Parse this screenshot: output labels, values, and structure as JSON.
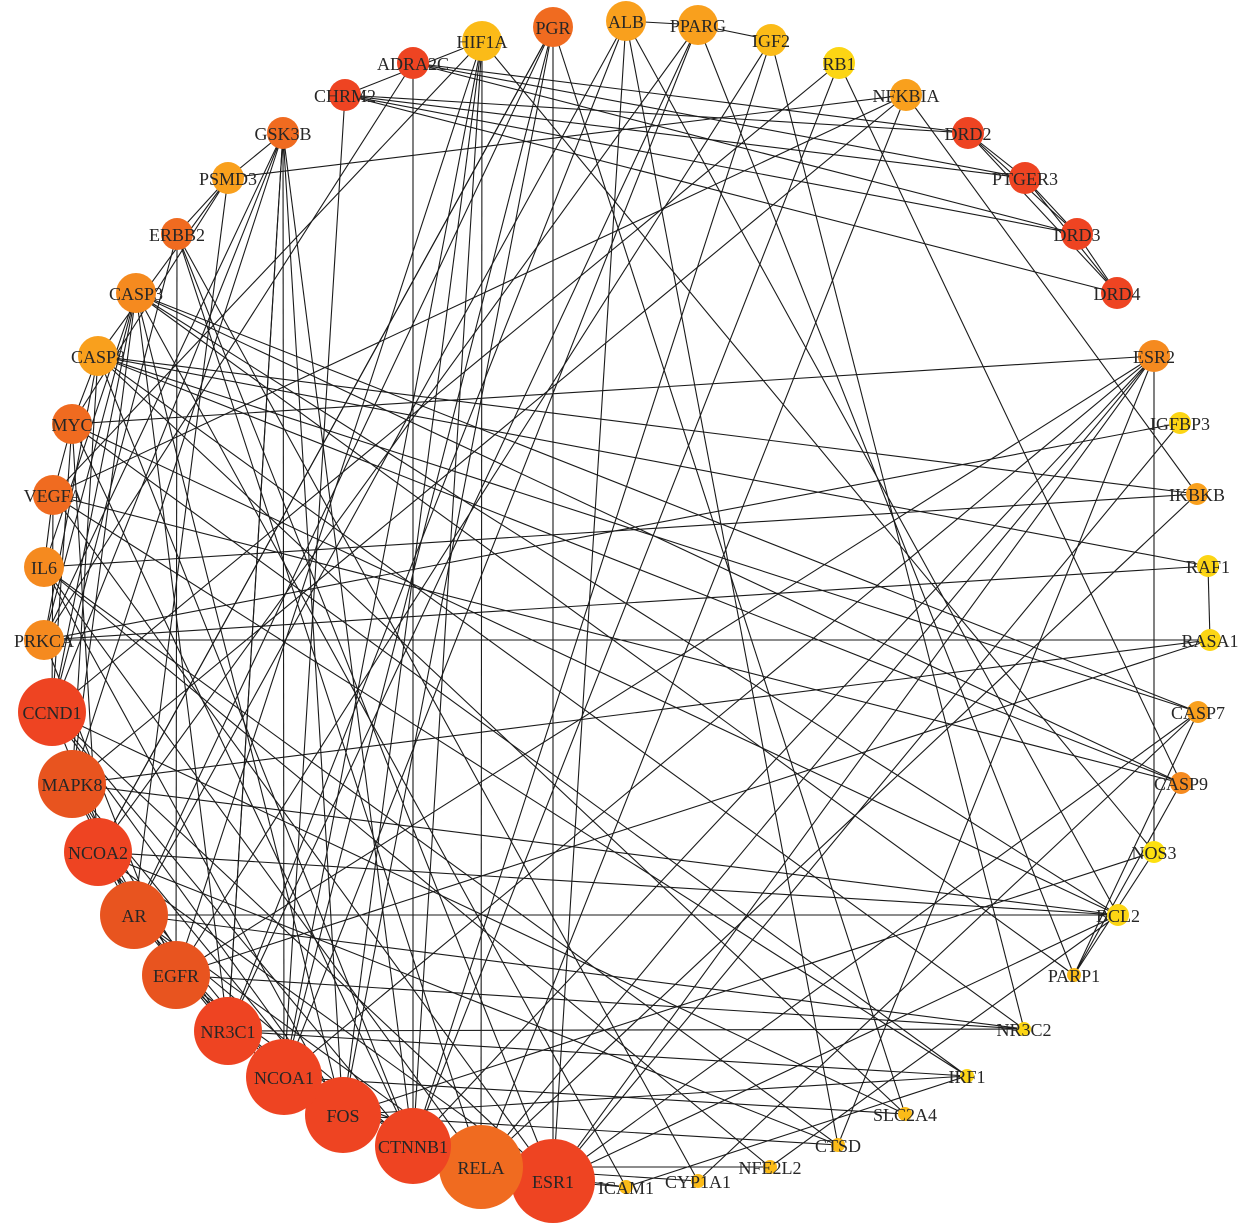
{
  "colors": {
    "c1": "#ee4422",
    "c2": "#e8541f",
    "c3": "#f06b20",
    "c4": "#f58a1f",
    "c5": "#f9a01d",
    "c6": "#fbbb18",
    "c7": "#fcd514",
    "c8": "#fde010",
    "edge": "#1a1a1a"
  },
  "network": {
    "nodes": [
      {
        "id": "HIF1A",
        "label": "HIF1A",
        "color": "c6",
        "size": "medium"
      },
      {
        "id": "PGR",
        "label": "PGR",
        "color": "c3",
        "size": "medium"
      },
      {
        "id": "ALB",
        "label": "ALB",
        "color": "c5",
        "size": "medium"
      },
      {
        "id": "PPARG",
        "label": "PPARG",
        "color": "c5",
        "size": "medium"
      },
      {
        "id": "IGF2",
        "label": "IGF2",
        "color": "c6",
        "size": "small"
      },
      {
        "id": "RB1",
        "label": "RB1",
        "color": "c7",
        "size": "small"
      },
      {
        "id": "NFKBIA",
        "label": "NFKBIA",
        "color": "c5",
        "size": "small"
      },
      {
        "id": "DRD2",
        "label": "DRD2",
        "color": "c1",
        "size": "small"
      },
      {
        "id": "PTGER3",
        "label": "PTGER3",
        "color": "c1",
        "size": "small"
      },
      {
        "id": "DRD3",
        "label": "DRD3",
        "color": "c1",
        "size": "small"
      },
      {
        "id": "DRD4",
        "label": "DRD4",
        "color": "c1",
        "size": "small"
      },
      {
        "id": "ESR2",
        "label": "ESR2",
        "color": "c4",
        "size": "small"
      },
      {
        "id": "IGFBP3",
        "label": "IGFBP3",
        "color": "c7",
        "size": "xsmall"
      },
      {
        "id": "IKBKB",
        "label": "IKBKB",
        "color": "c5",
        "size": "xsmall"
      },
      {
        "id": "RAF1",
        "label": "RAF1",
        "color": "c7",
        "size": "xsmall"
      },
      {
        "id": "RASA1",
        "label": "RASA1",
        "color": "c7",
        "size": "xsmall"
      },
      {
        "id": "CASP7",
        "label": "CASP7",
        "color": "c5",
        "size": "xsmall"
      },
      {
        "id": "CASP9",
        "label": "CASP9",
        "color": "c4",
        "size": "xsmall"
      },
      {
        "id": "NOS3",
        "label": "NOS3",
        "color": "c8",
        "size": "xsmall"
      },
      {
        "id": "BCL2",
        "label": "BCL2",
        "color": "c7",
        "size": "xsmall"
      },
      {
        "id": "PARP1",
        "label": "PARP1",
        "color": "c6",
        "size": "tiny"
      },
      {
        "id": "NR3C2",
        "label": "NR3C2",
        "color": "c7",
        "size": "tiny"
      },
      {
        "id": "IRF1",
        "label": "IRF1",
        "color": "c7",
        "size": "tiny"
      },
      {
        "id": "SLC2A4",
        "label": "SLC2A4",
        "color": "c6",
        "size": "tiny"
      },
      {
        "id": "CTSD",
        "label": "CTSD",
        "color": "c6",
        "size": "tiny"
      },
      {
        "id": "NFE2L2",
        "label": "NFE2L2",
        "color": "c6",
        "size": "tiny"
      },
      {
        "id": "CYP1A1",
        "label": "CYP1A1",
        "color": "c6",
        "size": "tiny"
      },
      {
        "id": "ICAM1",
        "label": "ICAM1",
        "color": "c6",
        "size": "tiny"
      },
      {
        "id": "ESR1",
        "label": "ESR1",
        "color": "c1",
        "size": "huge"
      },
      {
        "id": "RELA",
        "label": "RELA",
        "color": "c3",
        "size": "huge"
      },
      {
        "id": "CTNNB1",
        "label": "CTNNB1",
        "color": "c1",
        "size": "xlarge"
      },
      {
        "id": "FOS",
        "label": "FOS",
        "color": "c1",
        "size": "xlarge"
      },
      {
        "id": "NCOA1",
        "label": "NCOA1",
        "color": "c1",
        "size": "xlarge"
      },
      {
        "id": "NR3C1",
        "label": "NR3C1",
        "color": "c1",
        "size": "large"
      },
      {
        "id": "EGFR",
        "label": "EGFR",
        "color": "c2",
        "size": "large"
      },
      {
        "id": "AR",
        "label": "AR",
        "color": "c2",
        "size": "large"
      },
      {
        "id": "NCOA2",
        "label": "NCOA2",
        "color": "c1",
        "size": "large"
      },
      {
        "id": "MAPK8",
        "label": "MAPK8",
        "color": "c2",
        "size": "large"
      },
      {
        "id": "CCND1",
        "label": "CCND1",
        "color": "c1",
        "size": "large"
      },
      {
        "id": "PRKCA",
        "label": "PRKCA",
        "color": "c4",
        "size": "medium"
      },
      {
        "id": "IL6",
        "label": "IL6",
        "color": "c4",
        "size": "medium"
      },
      {
        "id": "VEGFA",
        "label": "VEGFA",
        "color": "c3",
        "size": "medium"
      },
      {
        "id": "MYC",
        "label": "MYC",
        "color": "c3",
        "size": "medium"
      },
      {
        "id": "CASP8",
        "label": "CASP8",
        "color": "c5",
        "size": "medium"
      },
      {
        "id": "CASP3",
        "label": "CASP3",
        "color": "c4",
        "size": "medium"
      },
      {
        "id": "ERBB2",
        "label": "ERBB2",
        "color": "c3",
        "size": "small"
      },
      {
        "id": "PSMD3",
        "label": "PSMD3",
        "color": "c5",
        "size": "small"
      },
      {
        "id": "GSK3B",
        "label": "GSK3B",
        "color": "c3",
        "size": "small"
      },
      {
        "id": "CHRM2",
        "label": "CHRM2",
        "color": "c1",
        "size": "small"
      },
      {
        "id": "ADRA2C",
        "label": "ADRA2C",
        "color": "c1",
        "size": "small"
      }
    ],
    "edges": [
      [
        "PPARG",
        "IGF2"
      ],
      [
        "ALB",
        "PPARG"
      ],
      [
        "DRD2",
        "PTGER3"
      ],
      [
        "DRD2",
        "DRD3"
      ],
      [
        "DRD2",
        "DRD4"
      ],
      [
        "PTGER3",
        "DRD3"
      ],
      [
        "PTGER3",
        "DRD4"
      ],
      [
        "DRD3",
        "DRD4"
      ],
      [
        "ADRA2C",
        "DRD2"
      ],
      [
        "ADRA2C",
        "DRD3"
      ],
      [
        "ADRA2C",
        "PTGER3"
      ],
      [
        "CHRM2",
        "DRD2"
      ],
      [
        "CHRM2",
        "DRD4"
      ],
      [
        "CHRM2",
        "PTGER3"
      ],
      [
        "CHRM2",
        "DRD3"
      ],
      [
        "ESR2",
        "NOS3"
      ],
      [
        "RAF1",
        "RASA1"
      ],
      [
        "PRKCA",
        "RASA1"
      ],
      [
        "PRKCA",
        "RAF1"
      ],
      [
        "CASP7",
        "PARP1"
      ],
      [
        "CASP9",
        "PARP1"
      ],
      [
        "CASP3",
        "CASP7"
      ],
      [
        "CASP3",
        "CASP9"
      ],
      [
        "CASP8",
        "CASP7"
      ],
      [
        "CASP8",
        "CASP9"
      ],
      [
        "CASP3",
        "PARP1"
      ],
      [
        "CASP8",
        "IKBKB"
      ],
      [
        "ESR1",
        "ESR2"
      ],
      [
        "ESR1",
        "PGR"
      ],
      [
        "ESR1",
        "NCOA1"
      ],
      [
        "ESR1",
        "NCOA2"
      ],
      [
        "ESR1",
        "CCND1"
      ],
      [
        "ESR1",
        "IGFBP3"
      ],
      [
        "ESR1",
        "ALB"
      ],
      [
        "ESR1",
        "BCL2"
      ],
      [
        "ESR1",
        "CASP7"
      ],
      [
        "ESR1",
        "ICAM1"
      ],
      [
        "RELA",
        "NFKBIA"
      ],
      [
        "RELA",
        "IKBKB"
      ],
      [
        "RELA",
        "NCOA1"
      ],
      [
        "RELA",
        "ICAM1"
      ],
      [
        "RELA",
        "HIF1A"
      ],
      [
        "RELA",
        "IL6"
      ],
      [
        "RELA",
        "NFE2L2"
      ],
      [
        "RELA",
        "ESR2"
      ],
      [
        "RELA",
        "AR"
      ],
      [
        "RELA",
        "CYP1A1"
      ],
      [
        "CTNNB1",
        "MYC"
      ],
      [
        "CTNNB1",
        "GSK3B"
      ],
      [
        "CTNNB1",
        "EGFR"
      ],
      [
        "CTNNB1",
        "CCND1"
      ],
      [
        "CTNNB1",
        "AR"
      ],
      [
        "CTNNB1",
        "ESR2"
      ],
      [
        "CTNNB1",
        "IGF2"
      ],
      [
        "CTNNB1",
        "HIF1A"
      ],
      [
        "CTNNB1",
        "RB1"
      ],
      [
        "FOS",
        "MAPK8"
      ],
      [
        "FOS",
        "CCND1"
      ],
      [
        "FOS",
        "EGFR"
      ],
      [
        "FOS",
        "IL6"
      ],
      [
        "FOS",
        "IRF1"
      ],
      [
        "FOS",
        "PGR"
      ],
      [
        "FOS",
        "HIF1A"
      ],
      [
        "FOS",
        "CTSD"
      ],
      [
        "FOS",
        "NOS3"
      ],
      [
        "NCOA1",
        "NCOA2"
      ],
      [
        "NCOA1",
        "AR"
      ],
      [
        "NCOA1",
        "PGR"
      ],
      [
        "NCOA1",
        "NR3C1"
      ],
      [
        "NCOA1",
        "PPARG"
      ],
      [
        "NCOA1",
        "SLC2A4"
      ],
      [
        "NCOA1",
        "ESR2"
      ],
      [
        "NCOA1",
        "HIF1A"
      ],
      [
        "NR3C1",
        "NCOA2"
      ],
      [
        "NR3C1",
        "AR"
      ],
      [
        "NR3C1",
        "NR3C2"
      ],
      [
        "NR3C1",
        "PPARG"
      ],
      [
        "NR3C1",
        "MAPK8"
      ],
      [
        "NR3C1",
        "IRF1"
      ],
      [
        "NR3C1",
        "ALB"
      ],
      [
        "NR3C1",
        "GSK3B"
      ],
      [
        "EGFR",
        "ERBB2"
      ],
      [
        "EGFR",
        "RASA1"
      ],
      [
        "EGFR",
        "PRKCA"
      ],
      [
        "EGFR",
        "MAPK8"
      ],
      [
        "EGFR",
        "HIF1A"
      ],
      [
        "EGFR",
        "IGF2"
      ],
      [
        "EGFR",
        "ESR2"
      ],
      [
        "EGFR",
        "NR3C2"
      ],
      [
        "AR",
        "NCOA2"
      ],
      [
        "AR",
        "PGR"
      ],
      [
        "AR",
        "CCND1"
      ],
      [
        "AR",
        "MAPK8"
      ],
      [
        "AR",
        "PSMD3"
      ],
      [
        "AR",
        "NR3C2"
      ],
      [
        "AR",
        "ALB"
      ],
      [
        "AR",
        "BCL2"
      ],
      [
        "NCOA2",
        "PGR"
      ],
      [
        "NCOA2",
        "PPARG"
      ],
      [
        "NCOA2",
        "BCL2"
      ],
      [
        "NCOA2",
        "CTSD"
      ],
      [
        "NCOA2",
        "MYC"
      ],
      [
        "MAPK8",
        "CASP3"
      ],
      [
        "MAPK8",
        "CASP8"
      ],
      [
        "MAPK8",
        "BCL2"
      ],
      [
        "MAPK8",
        "RASA1"
      ],
      [
        "MAPK8",
        "NFKBIA"
      ],
      [
        "MAPK8",
        "GSK3B"
      ],
      [
        "CCND1",
        "MYC"
      ],
      [
        "CCND1",
        "ERBB2"
      ],
      [
        "CCND1",
        "RB1"
      ],
      [
        "CCND1",
        "VEGFA"
      ],
      [
        "CCND1",
        "CASP3"
      ],
      [
        "CCND1",
        "GSK3B"
      ],
      [
        "CCND1",
        "SLC2A4"
      ],
      [
        "PRKCA",
        "CASP3"
      ],
      [
        "PRKCA",
        "IGFBP3"
      ],
      [
        "PRKCA",
        "GSK3B"
      ],
      [
        "PRKCA",
        "ADRA2C"
      ],
      [
        "PRKCA",
        "CASP8"
      ],
      [
        "IL6",
        "VEGFA"
      ],
      [
        "IL6",
        "IKBKB"
      ],
      [
        "IL6",
        "CASP3"
      ],
      [
        "IL6",
        "CTSD"
      ],
      [
        "IL6",
        "NFE2L2"
      ],
      [
        "VEGFA",
        "HIF1A"
      ],
      [
        "VEGFA",
        "CASP9"
      ],
      [
        "VEGFA",
        "ESR1"
      ],
      [
        "VEGFA",
        "MYC"
      ],
      [
        "VEGFA",
        "NFKBIA"
      ],
      [
        "MYC",
        "CASP8"
      ],
      [
        "MYC",
        "PSMD3"
      ],
      [
        "MYC",
        "ESR2"
      ],
      [
        "MYC",
        "IRF1"
      ],
      [
        "MYC",
        "BCL2"
      ],
      [
        "CASP8",
        "PSMD3"
      ],
      [
        "CASP8",
        "RAF1"
      ],
      [
        "CASP8",
        "SLC2A4"
      ],
      [
        "CASP8",
        "CTNNB1"
      ],
      [
        "CASP3",
        "BCL2"
      ],
      [
        "CASP3",
        "ICAM1"
      ],
      [
        "CASP3",
        "FOS"
      ],
      [
        "CASP3",
        "NR3C1"
      ],
      [
        "ERBB2",
        "PSMD3"
      ],
      [
        "ERBB2",
        "ESR1"
      ],
      [
        "ERBB2",
        "CYP1A1"
      ],
      [
        "ERBB2",
        "RELA"
      ],
      [
        "GSK3B",
        "PSMD3"
      ],
      [
        "GSK3B",
        "NCOA1"
      ],
      [
        "GSK3B",
        "NR3C1"
      ],
      [
        "GSK3B",
        "FOS"
      ],
      [
        "CHRM2",
        "HIF1A"
      ],
      [
        "CHRM2",
        "NCOA1"
      ],
      [
        "ADRA2C",
        "CTNNB1"
      ],
      [
        "PSMD3",
        "NFKBIA"
      ],
      [
        "HIF1A",
        "NOS3"
      ],
      [
        "ALB",
        "CTSD"
      ],
      [
        "PGR",
        "NCOA2"
      ],
      [
        "RB1",
        "CASP9"
      ],
      [
        "IGF2",
        "NR3C2"
      ],
      [
        "IKBKB",
        "NFKBIA"
      ],
      [
        "PPARG",
        "PARP1"
      ],
      [
        "NFE2L2",
        "BCL2"
      ],
      [
        "ICAM1",
        "IRF1"
      ],
      [
        "CYP1A1",
        "CASP7"
      ],
      [
        "SLC2A4",
        "PGR"
      ],
      [
        "CTSD",
        "ESR2"
      ],
      [
        "NR3C2",
        "CASP8"
      ],
      [
        "IRF1",
        "VEGFA"
      ],
      [
        "PARP1",
        "NOS3"
      ],
      [
        "BCL2",
        "ALB"
      ]
    ]
  }
}
